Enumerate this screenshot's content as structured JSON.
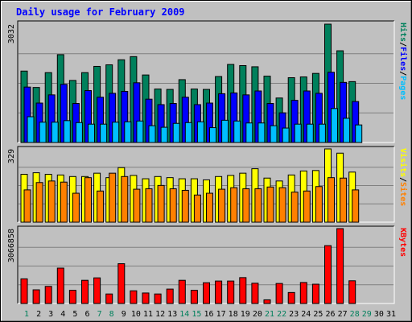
{
  "chart_data": {
    "type": "bar",
    "title": "Daily usage for February 2009",
    "categories": [
      "1",
      "2",
      "3",
      "4",
      "5",
      "6",
      "7",
      "8",
      "9",
      "10",
      "11",
      "12",
      "13",
      "14",
      "15",
      "16",
      "17",
      "18",
      "19",
      "20",
      "21",
      "22",
      "23",
      "24",
      "25",
      "26",
      "27",
      "28",
      "29",
      "30",
      "31"
    ],
    "weekend_days": [
      "1",
      "7",
      "8",
      "14",
      "15",
      "21",
      "22",
      "28",
      "29"
    ],
    "panels": [
      {
        "name": "top",
        "max_label": "3032",
        "ylim": [
          0,
          3032
        ],
        "right_labels": [
          "Pages",
          "Files",
          "Hits"
        ],
        "series": [
          {
            "name": "Hits",
            "color": "#00805c",
            "values": [
              1830,
              1410,
              1790,
              2250,
              1590,
              1790,
              1950,
              1990,
              2120,
              2200,
              1730,
              1370,
              1360,
              1610,
              1370,
              1360,
              1690,
              2000,
              1970,
              1940,
              1700,
              1140,
              1660,
              1680,
              1770,
              3032,
              2350,
              1560,
              0,
              0,
              0
            ]
          },
          {
            "name": "Files",
            "color": "#0000ff",
            "values": [
              1420,
              1010,
              1220,
              1490,
              1000,
              1330,
              1160,
              1260,
              1310,
              1530,
              1110,
              970,
              1000,
              1160,
              970,
              1010,
              1250,
              1270,
              1220,
              1320,
              1000,
              760,
              1080,
              1320,
              1260,
              1800,
              1540,
              1050,
              0,
              0,
              0
            ]
          },
          {
            "name": "Pages",
            "color": "#00bfff",
            "values": [
              660,
              520,
              520,
              560,
              510,
              470,
              470,
              520,
              530,
              550,
              430,
              390,
              490,
              510,
              530,
              380,
              570,
              550,
              500,
              500,
              430,
              370,
              470,
              470,
              470,
              870,
              620,
              450,
              0,
              0,
              0
            ]
          }
        ]
      },
      {
        "name": "middle",
        "max_label": "329",
        "ylim": [
          0,
          329
        ],
        "right_labels": [
          "Sites",
          "Visits"
        ],
        "series": [
          {
            "name": "Visits",
            "color": "#ffff00",
            "values": [
              215,
              222,
              215,
              212,
              205,
              205,
              220,
              200,
              245,
              210,
              195,
              205,
              200,
              195,
              195,
              190,
              205,
              210,
              220,
              240,
              198,
              185,
              212,
              230,
              232,
              329,
              310,
              225,
              0,
              0,
              0
            ]
          },
          {
            "name": "Sites",
            "color": "#ff8000",
            "values": [
              145,
              178,
              185,
              180,
              130,
              200,
              140,
              220,
              205,
              148,
              150,
              165,
              150,
              143,
              122,
              130,
              148,
              155,
              150,
              150,
              158,
              155,
              135,
              140,
              160,
              200,
              198,
              145,
              0,
              0,
              0
            ]
          }
        ]
      },
      {
        "name": "bottom",
        "max_label": "3066858",
        "ylim": [
          0,
          3066858
        ],
        "right_labels": [
          "KBytes"
        ],
        "series": [
          {
            "name": "KBytes",
            "color": "#ff0000",
            "values": [
              1010000,
              560000,
              700000,
              1450000,
              540000,
              950000,
              1050000,
              390000,
              1630000,
              520000,
              430000,
              390000,
              590000,
              950000,
              540000,
              850000,
              920000,
              920000,
              1060000,
              830000,
              150000,
              820000,
              450000,
              860000,
              790000,
              2370000,
              3066858,
              930000,
              0,
              0,
              0
            ]
          }
        ]
      }
    ]
  }
}
